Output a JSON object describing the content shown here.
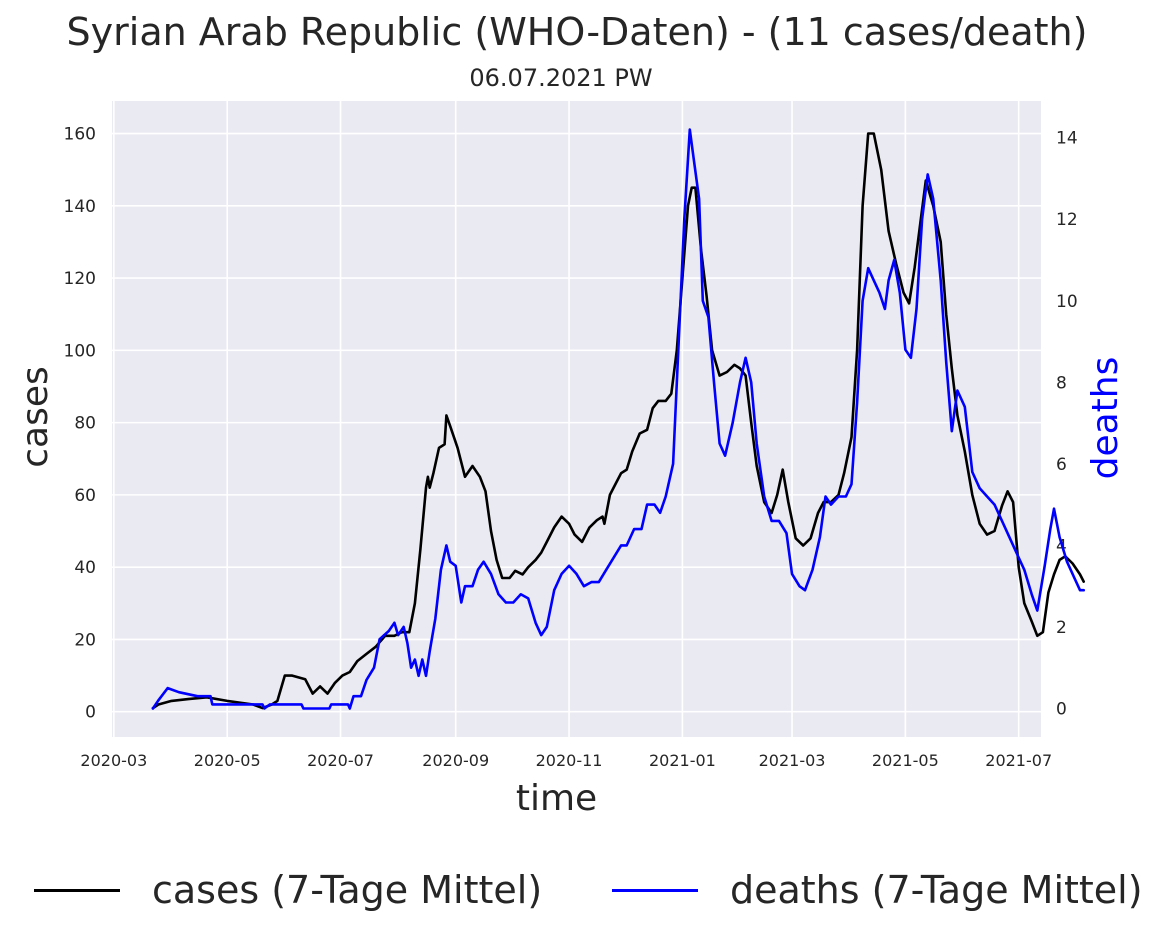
{
  "header": {
    "title": "Syrian Arab Republic (WHO-Daten) - (11 cases/death)",
    "subtitle": "06.07.2021 PW"
  },
  "legend": {
    "cases_label": "cases (7-Tage Mittel)",
    "deaths_label": "deaths (7-Tage Mittel)"
  },
  "chart_data": {
    "type": "line",
    "title": "Syrian Arab Republic (WHO-Daten) - (11 cases/death)",
    "subtitle": "06.07.2021 PW",
    "xlabel": "time",
    "ylabel": "cases",
    "y2label": "deaths",
    "x_ticks": [
      "2020-03",
      "2020-05",
      "2020-07",
      "2020-09",
      "2020-11",
      "2021-01",
      "2021-03",
      "2021-05",
      "2021-07"
    ],
    "y_ticks": [
      0,
      20,
      40,
      60,
      80,
      100,
      120,
      140,
      160
    ],
    "y2_ticks": [
      0,
      2,
      4,
      6,
      8,
      10,
      12,
      14
    ],
    "xlim": [
      "2020-02-29",
      "2021-07-13"
    ],
    "ylim": [
      -7,
      169
    ],
    "y2lim": [
      -0.7,
      14.9
    ],
    "grid": true,
    "background": "#eaeaf2",
    "legend_position": "bottom",
    "series": [
      {
        "name": "cases (7-Tage Mittel)",
        "axis": "left",
        "color": "#000000",
        "points": [
          [
            "2020-03-22",
            1
          ],
          [
            "2020-03-25",
            2
          ],
          [
            "2020-04-01",
            3
          ],
          [
            "2020-04-10",
            3.5
          ],
          [
            "2020-04-20",
            4
          ],
          [
            "2020-05-01",
            3
          ],
          [
            "2020-05-15",
            2
          ],
          [
            "2020-05-20",
            1
          ],
          [
            "2020-05-25",
            2
          ],
          [
            "2020-05-28",
            3
          ],
          [
            "2020-06-01",
            10
          ],
          [
            "2020-06-05",
            10
          ],
          [
            "2020-06-12",
            9
          ],
          [
            "2020-06-16",
            5
          ],
          [
            "2020-06-20",
            7
          ],
          [
            "2020-06-24",
            5
          ],
          [
            "2020-06-28",
            8
          ],
          [
            "2020-07-02",
            10
          ],
          [
            "2020-07-06",
            11
          ],
          [
            "2020-07-10",
            14
          ],
          [
            "2020-07-15",
            16
          ],
          [
            "2020-07-20",
            18
          ],
          [
            "2020-07-25",
            21
          ],
          [
            "2020-07-30",
            21
          ],
          [
            "2020-08-03",
            22
          ],
          [
            "2020-08-07",
            22
          ],
          [
            "2020-08-10",
            30
          ],
          [
            "2020-08-13",
            45
          ],
          [
            "2020-08-16",
            62
          ],
          [
            "2020-08-17",
            65
          ],
          [
            "2020-08-18",
            62
          ],
          [
            "2020-08-20",
            66
          ],
          [
            "2020-08-23",
            73
          ],
          [
            "2020-08-26",
            74
          ],
          [
            "2020-08-27",
            82
          ],
          [
            "2020-08-29",
            79
          ],
          [
            "2020-09-02",
            73
          ],
          [
            "2020-09-06",
            65
          ],
          [
            "2020-09-10",
            68
          ],
          [
            "2020-09-14",
            65
          ],
          [
            "2020-09-17",
            61
          ],
          [
            "2020-09-20",
            50
          ],
          [
            "2020-09-23",
            42
          ],
          [
            "2020-09-26",
            37
          ],
          [
            "2020-09-30",
            37
          ],
          [
            "2020-10-03",
            39
          ],
          [
            "2020-10-07",
            38
          ],
          [
            "2020-10-10",
            40
          ],
          [
            "2020-10-14",
            42
          ],
          [
            "2020-10-17",
            44
          ],
          [
            "2020-10-20",
            47
          ],
          [
            "2020-10-24",
            51
          ],
          [
            "2020-10-28",
            54
          ],
          [
            "2020-11-01",
            52
          ],
          [
            "2020-11-04",
            49
          ],
          [
            "2020-11-08",
            47
          ],
          [
            "2020-11-12",
            51
          ],
          [
            "2020-11-16",
            53
          ],
          [
            "2020-11-19",
            54
          ],
          [
            "2020-11-20",
            52
          ],
          [
            "2020-11-23",
            60
          ],
          [
            "2020-11-26",
            63
          ],
          [
            "2020-11-29",
            66
          ],
          [
            "2020-12-02",
            67
          ],
          [
            "2020-12-05",
            72
          ],
          [
            "2020-12-09",
            77
          ],
          [
            "2020-12-13",
            78
          ],
          [
            "2020-12-16",
            84
          ],
          [
            "2020-12-19",
            86
          ],
          [
            "2020-12-23",
            86
          ],
          [
            "2020-12-26",
            88
          ],
          [
            "2020-12-29",
            100
          ],
          [
            "2021-01-01",
            120
          ],
          [
            "2021-01-04",
            140
          ],
          [
            "2021-01-06",
            145
          ],
          [
            "2021-01-08",
            145
          ],
          [
            "2021-01-11",
            128
          ],
          [
            "2021-01-14",
            115
          ],
          [
            "2021-01-17",
            100
          ],
          [
            "2021-01-21",
            93
          ],
          [
            "2021-01-25",
            94
          ],
          [
            "2021-01-29",
            96
          ],
          [
            "2021-02-01",
            95
          ],
          [
            "2021-02-04",
            93
          ],
          [
            "2021-02-07",
            80
          ],
          [
            "2021-02-10",
            68
          ],
          [
            "2021-02-14",
            58
          ],
          [
            "2021-02-18",
            55
          ],
          [
            "2021-02-21",
            60
          ],
          [
            "2021-02-24",
            67
          ],
          [
            "2021-02-27",
            58
          ],
          [
            "2021-03-03",
            48
          ],
          [
            "2021-03-07",
            46
          ],
          [
            "2021-03-11",
            48
          ],
          [
            "2021-03-15",
            55
          ],
          [
            "2021-03-18",
            58
          ],
          [
            "2021-03-22",
            58
          ],
          [
            "2021-03-26",
            60
          ],
          [
            "2021-03-29",
            66
          ],
          [
            "2021-04-02",
            76
          ],
          [
            "2021-04-05",
            100
          ],
          [
            "2021-04-08",
            140
          ],
          [
            "2021-04-11",
            160
          ],
          [
            "2021-04-14",
            160
          ],
          [
            "2021-04-18",
            150
          ],
          [
            "2021-04-22",
            133
          ],
          [
            "2021-04-26",
            124
          ],
          [
            "2021-04-30",
            116
          ],
          [
            "2021-05-03",
            113
          ],
          [
            "2021-05-06",
            123
          ],
          [
            "2021-05-09",
            135
          ],
          [
            "2021-05-12",
            147
          ],
          [
            "2021-05-16",
            140
          ],
          [
            "2021-05-20",
            130
          ],
          [
            "2021-05-23",
            110
          ],
          [
            "2021-05-26",
            95
          ],
          [
            "2021-05-29",
            82
          ],
          [
            "2021-06-02",
            72
          ],
          [
            "2021-06-06",
            60
          ],
          [
            "2021-06-10",
            52
          ],
          [
            "2021-06-14",
            49
          ],
          [
            "2021-06-18",
            50
          ],
          [
            "2021-06-22",
            57
          ],
          [
            "2021-06-25",
            61
          ],
          [
            "2021-06-28",
            58
          ],
          [
            "2021-07-01",
            40
          ],
          [
            "2021-07-04",
            30
          ],
          [
            "2021-07-08",
            25
          ],
          [
            "2021-07-11",
            21
          ],
          [
            "2021-07-14",
            22
          ],
          [
            "2021-07-17",
            33
          ],
          [
            "2021-07-20",
            38
          ],
          [
            "2021-07-23",
            42
          ],
          [
            "2021-07-26",
            43
          ],
          [
            "2021-07-30",
            41
          ],
          [
            "2021-08-03",
            38
          ],
          [
            "2021-08-05",
            36
          ]
        ]
      },
      {
        "name": "deaths (7-Tage Mittel)",
        "axis": "right",
        "color": "#0000ff",
        "points": [
          [
            "2020-03-22",
            0
          ],
          [
            "2020-03-25",
            0.2
          ],
          [
            "2020-03-30",
            0.5
          ],
          [
            "2020-04-05",
            0.4
          ],
          [
            "2020-04-15",
            0.3
          ],
          [
            "2020-04-22",
            0.3
          ],
          [
            "2020-04-23",
            0.1
          ],
          [
            "2020-05-20",
            0.1
          ],
          [
            "2020-05-21",
            0
          ],
          [
            "2020-05-24",
            0.1
          ],
          [
            "2020-06-10",
            0.1
          ],
          [
            "2020-06-11",
            0
          ],
          [
            "2020-06-25",
            0
          ],
          [
            "2020-06-26",
            0.1
          ],
          [
            "2020-07-05",
            0.1
          ],
          [
            "2020-07-06",
            0
          ],
          [
            "2020-07-08",
            0.3
          ],
          [
            "2020-07-12",
            0.3
          ],
          [
            "2020-07-15",
            0.7
          ],
          [
            "2020-07-19",
            1.0
          ],
          [
            "2020-07-22",
            1.7
          ],
          [
            "2020-07-27",
            1.9
          ],
          [
            "2020-07-30",
            2.1
          ],
          [
            "2020-08-01",
            1.8
          ],
          [
            "2020-08-04",
            2.0
          ],
          [
            "2020-08-06",
            1.6
          ],
          [
            "2020-08-08",
            1.0
          ],
          [
            "2020-08-10",
            1.2
          ],
          [
            "2020-08-12",
            0.8
          ],
          [
            "2020-08-14",
            1.2
          ],
          [
            "2020-08-16",
            0.8
          ],
          [
            "2020-08-18",
            1.4
          ],
          [
            "2020-08-21",
            2.2
          ],
          [
            "2020-08-24",
            3.4
          ],
          [
            "2020-08-27",
            4.0
          ],
          [
            "2020-08-29",
            3.6
          ],
          [
            "2020-09-01",
            3.5
          ],
          [
            "2020-09-04",
            2.6
          ],
          [
            "2020-09-06",
            3.0
          ],
          [
            "2020-09-10",
            3.0
          ],
          [
            "2020-09-13",
            3.4
          ],
          [
            "2020-09-16",
            3.6
          ],
          [
            "2020-09-20",
            3.3
          ],
          [
            "2020-09-24",
            2.8
          ],
          [
            "2020-09-28",
            2.6
          ],
          [
            "2020-10-02",
            2.6
          ],
          [
            "2020-10-06",
            2.8
          ],
          [
            "2020-10-10",
            2.7
          ],
          [
            "2020-10-14",
            2.1
          ],
          [
            "2020-10-17",
            1.8
          ],
          [
            "2020-10-20",
            2.0
          ],
          [
            "2020-10-24",
            2.9
          ],
          [
            "2020-10-28",
            3.3
          ],
          [
            "2020-11-01",
            3.5
          ],
          [
            "2020-11-05",
            3.3
          ],
          [
            "2020-11-09",
            3.0
          ],
          [
            "2020-11-13",
            3.1
          ],
          [
            "2020-11-17",
            3.1
          ],
          [
            "2020-11-21",
            3.4
          ],
          [
            "2020-11-25",
            3.7
          ],
          [
            "2020-11-29",
            4.0
          ],
          [
            "2020-12-02",
            4.0
          ],
          [
            "2020-12-06",
            4.4
          ],
          [
            "2020-12-10",
            4.4
          ],
          [
            "2020-12-13",
            5.0
          ],
          [
            "2020-12-17",
            5.0
          ],
          [
            "2020-12-20",
            4.8
          ],
          [
            "2020-12-23",
            5.2
          ],
          [
            "2020-12-27",
            6.0
          ],
          [
            "2020-12-30",
            9.0
          ],
          [
            "2021-01-02",
            12.0
          ],
          [
            "2021-01-05",
            14.2
          ],
          [
            "2021-01-07",
            13.5
          ],
          [
            "2021-01-10",
            12.5
          ],
          [
            "2021-01-12",
            10.0
          ],
          [
            "2021-01-15",
            9.6
          ],
          [
            "2021-01-18",
            8.0
          ],
          [
            "2021-01-21",
            6.5
          ],
          [
            "2021-01-24",
            6.2
          ],
          [
            "2021-01-28",
            7.0
          ],
          [
            "2021-02-01",
            8.0
          ],
          [
            "2021-02-04",
            8.6
          ],
          [
            "2021-02-07",
            8.0
          ],
          [
            "2021-02-10",
            6.5
          ],
          [
            "2021-02-14",
            5.2
          ],
          [
            "2021-02-18",
            4.6
          ],
          [
            "2021-02-22",
            4.6
          ],
          [
            "2021-02-26",
            4.3
          ],
          [
            "2021-03-01",
            3.3
          ],
          [
            "2021-03-05",
            3.0
          ],
          [
            "2021-03-08",
            2.9
          ],
          [
            "2021-03-12",
            3.4
          ],
          [
            "2021-03-16",
            4.2
          ],
          [
            "2021-03-19",
            5.2
          ],
          [
            "2021-03-22",
            5.0
          ],
          [
            "2021-03-26",
            5.2
          ],
          [
            "2021-03-30",
            5.2
          ],
          [
            "2021-04-02",
            5.5
          ],
          [
            "2021-04-05",
            7.5
          ],
          [
            "2021-04-08",
            10.0
          ],
          [
            "2021-04-11",
            10.8
          ],
          [
            "2021-04-14",
            10.5
          ],
          [
            "2021-04-17",
            10.2
          ],
          [
            "2021-04-20",
            9.8
          ],
          [
            "2021-04-22",
            10.5
          ],
          [
            "2021-04-25",
            11.0
          ],
          [
            "2021-04-28",
            10.2
          ],
          [
            "2021-05-01",
            8.8
          ],
          [
            "2021-05-04",
            8.6
          ],
          [
            "2021-05-07",
            9.8
          ],
          [
            "2021-05-10",
            12.0
          ],
          [
            "2021-05-13",
            13.1
          ],
          [
            "2021-05-16",
            12.5
          ],
          [
            "2021-05-20",
            10.5
          ],
          [
            "2021-05-23",
            8.5
          ],
          [
            "2021-05-26",
            6.8
          ],
          [
            "2021-05-29",
            7.8
          ],
          [
            "2021-06-02",
            7.4
          ],
          [
            "2021-06-06",
            5.8
          ],
          [
            "2021-06-10",
            5.4
          ],
          [
            "2021-06-14",
            5.2
          ],
          [
            "2021-06-18",
            5.0
          ],
          [
            "2021-06-22",
            4.6
          ],
          [
            "2021-06-26",
            4.2
          ],
          [
            "2021-06-30",
            3.8
          ],
          [
            "2021-07-04",
            3.4
          ],
          [
            "2021-07-08",
            2.8
          ],
          [
            "2021-07-11",
            2.4
          ],
          [
            "2021-07-15",
            3.5
          ],
          [
            "2021-07-18",
            4.4
          ],
          [
            "2021-07-20",
            4.9
          ],
          [
            "2021-07-23",
            4.2
          ],
          [
            "2021-07-27",
            3.6
          ],
          [
            "2021-07-31",
            3.2
          ],
          [
            "2021-08-03",
            2.9
          ],
          [
            "2021-08-05",
            2.9
          ]
        ]
      }
    ]
  }
}
